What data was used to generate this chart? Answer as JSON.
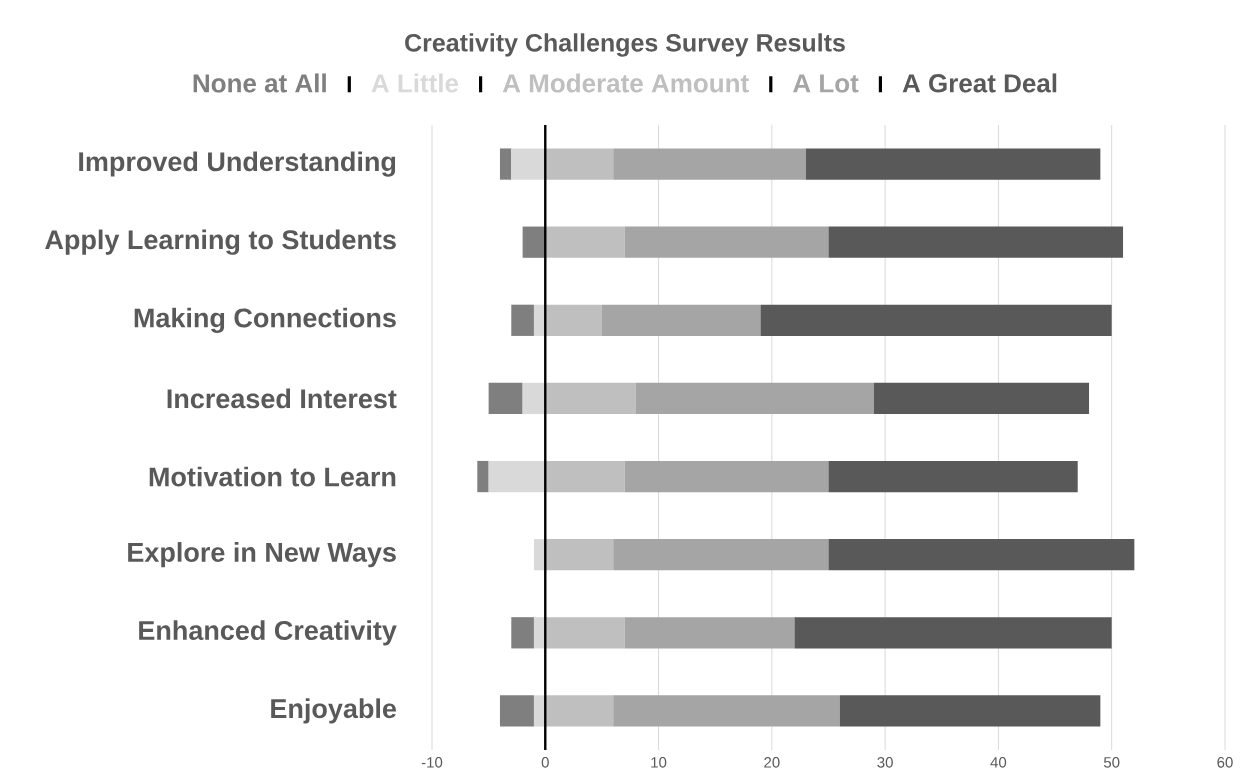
{
  "chart_data": {
    "type": "bar",
    "orientation": "horizontal",
    "title": "Creativity Challenges Survey Results",
    "categories": [
      "Improved Understanding",
      "Apply Learning to Students",
      "Making Connections",
      "Increased Interest",
      "Motivation to Learn",
      "Explore in New Ways",
      "Enhanced Creativity",
      "Enjoyable"
    ],
    "series": [
      {
        "name": "None at All",
        "color": "#7f7f7f",
        "values": [
          1,
          2,
          2,
          3,
          1,
          null,
          2,
          3
        ],
        "base": [
          -4,
          -2,
          -3,
          -5,
          -6,
          null,
          -3,
          -4
        ]
      },
      {
        "name": "A Little",
        "color": "#d9d9d9",
        "values": [
          3,
          null,
          1,
          2,
          5,
          1,
          1,
          1
        ],
        "base": [
          -3,
          null,
          -1,
          -2,
          -5,
          -1,
          -1,
          -1
        ]
      },
      {
        "name": "A Moderate Amount",
        "color": "#bfbfbf",
        "values": [
          6,
          7,
          5,
          8,
          7,
          6,
          7,
          6
        ],
        "base": [
          0,
          0,
          0,
          0,
          0,
          0,
          0,
          0
        ]
      },
      {
        "name": "A Lot",
        "color": "#a5a5a5",
        "values": [
          17,
          18,
          14,
          21,
          18,
          19,
          15,
          20
        ],
        "base": [
          6,
          7,
          5,
          8,
          7,
          6,
          7,
          6
        ]
      },
      {
        "name": "A Great Deal",
        "color": "#595959",
        "values": [
          26,
          26,
          31,
          19,
          22,
          27,
          28,
          23
        ],
        "base": [
          23,
          25,
          19,
          29,
          25,
          25,
          22,
          26
        ]
      }
    ],
    "xlim": [
      -10,
      60
    ],
    "xticks": [
      -10,
      0,
      10,
      20,
      30,
      40,
      50,
      60
    ],
    "grid": "x",
    "legend": "top"
  }
}
